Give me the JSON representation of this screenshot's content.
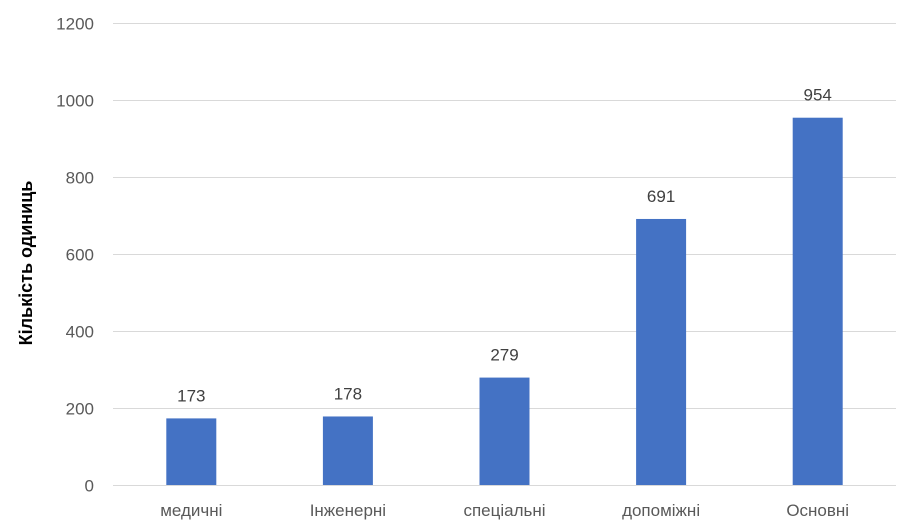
{
  "chart_data": {
    "type": "bar",
    "categories": [
      "медичні",
      "Інженерні",
      "спеціальні",
      "допоміжні",
      "Основні"
    ],
    "values": [
      173,
      178,
      279,
      691,
      954
    ],
    "data_labels": [
      "173",
      "178",
      "279",
      "691",
      "954"
    ],
    "ylabel": "Кількість одиниць",
    "xlabel": "",
    "ylim": [
      0,
      1200
    ],
    "yticks": [
      0,
      200,
      400,
      600,
      800,
      1000,
      1200
    ],
    "ytick_labels": [
      "0",
      "200",
      "400",
      "600",
      "800",
      "1000",
      "1200"
    ],
    "grid": true,
    "legend": "none",
    "colors": {
      "bar": "#4472C4",
      "grid": "#D9D9D9",
      "tick_text": "#595959",
      "data_label_text": "#404040"
    }
  }
}
